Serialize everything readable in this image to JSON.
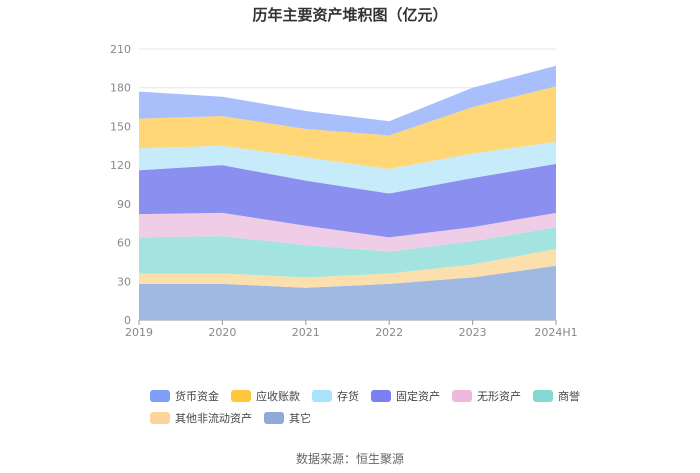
{
  "source_text": "数据来源：恒生聚源",
  "chart_data": {
    "type": "area",
    "title": "历年主要资产堆积图（亿元）",
    "x": [
      "2019",
      "2020",
      "2021",
      "2022",
      "2023",
      "2024H1"
    ],
    "ylim": [
      0,
      210
    ],
    "yticks": [
      0,
      30,
      60,
      90,
      120,
      150,
      180,
      210
    ],
    "grid": true,
    "legend_position": "bottom",
    "series": [
      {
        "name": "其它",
        "color": "#9fb9e3",
        "values": [
          28,
          28,
          25,
          28,
          33,
          42
        ]
      },
      {
        "name": "其他非流动资产",
        "color": "#fbe0ad",
        "values": [
          8,
          8,
          8,
          8,
          10,
          13
        ]
      },
      {
        "name": "商誉",
        "color": "#a3e4e0",
        "values": [
          28,
          29,
          25,
          17,
          18,
          17
        ]
      },
      {
        "name": "无形资产",
        "color": "#f0cde6",
        "values": [
          18,
          18,
          15,
          11,
          11,
          11
        ]
      },
      {
        "name": "固定资产",
        "color": "#8a8ff0",
        "values": [
          34,
          37,
          35,
          34,
          38,
          38
        ]
      },
      {
        "name": "存货",
        "color": "#c6ecfc",
        "values": [
          17,
          15,
          18,
          19,
          19,
          17
        ]
      },
      {
        "name": "应收账款",
        "color": "#ffd777",
        "values": [
          23,
          23,
          22,
          26,
          36,
          43
        ]
      },
      {
        "name": "货币资金",
        "color": "#a9bffb",
        "values": [
          21,
          15,
          14,
          11,
          15,
          16
        ]
      }
    ],
    "legend_order": [
      "货币资金",
      "应收账款",
      "存货",
      "固定资产",
      "无形资产",
      "商誉",
      "其他非流动资产",
      "其它"
    ],
    "legend_colors": {
      "货币资金": "#7f9ef7",
      "应收账款": "#ffc53d",
      "存货": "#a9e2fb",
      "固定资产": "#7b80f2",
      "无形资产": "#efb8dd",
      "商誉": "#84d9d2",
      "其他非流动资产": "#fcd59b",
      "其它": "#8fa9d9"
    }
  }
}
